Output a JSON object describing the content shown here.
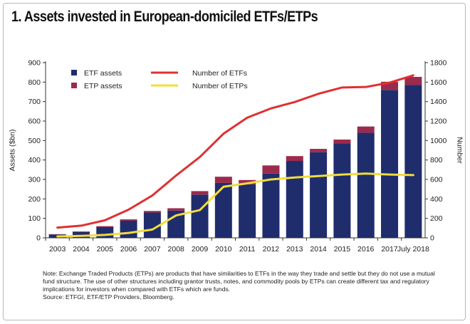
{
  "title": "1. Assets invested in European-domiciled ETFs/ETPs",
  "note": {
    "line1": "Note: Exchange Traded Products (ETPs) are products that have similarities to ETFs in the way they trade and settle but they do not use a mutual",
    "line2": "fund structure. The use of other structures including grantor trusts, notes, and commodity pools by ETPs can create different tax and regulatory",
    "line3": "implications for investors when compared with ETFs which are funds.",
    "source": "Source: ETFGI, ETF/ETP Providers, Bloomberg."
  },
  "chart_data": {
    "type": "bar",
    "ylabel": "Assets ($bn)",
    "y2label": "Number",
    "ylim": [
      0,
      900
    ],
    "y2lim": [
      0,
      1800
    ],
    "yticks": [
      "0",
      "100",
      "200",
      "300",
      "400",
      "500",
      "600",
      "700",
      "800",
      "900"
    ],
    "y2ticks": [
      "0",
      "200",
      "400",
      "600",
      "800",
      "1000",
      "1200",
      "1400",
      "1600",
      "1800"
    ],
    "categories": [
      "2003",
      "2004",
      "2005",
      "2006",
      "2007",
      "2008",
      "2009",
      "2010",
      "2011",
      "2012",
      "2013",
      "2014",
      "2015",
      "2016",
      "2017",
      "July 2018"
    ],
    "series": [
      {
        "name": "ETF assets",
        "kind": "bar",
        "axis": "left",
        "color": "#1f2d6d",
        "values": [
          17,
          30,
          55,
          88,
          130,
          140,
          222,
          282,
          275,
          330,
          395,
          440,
          485,
          540,
          760,
          785
        ]
      },
      {
        "name": "ETP assets",
        "kind": "bar",
        "axis": "left",
        "color": "#9c2a4c",
        "values": [
          2,
          3,
          5,
          7,
          8,
          12,
          18,
          32,
          22,
          42,
          25,
          17,
          20,
          32,
          42,
          42
        ]
      },
      {
        "name": "Number of ETFs",
        "kind": "line",
        "axis": "right",
        "color": "#e03030",
        "values": [
          105,
          125,
          180,
          290,
          435,
          640,
          830,
          1070,
          1235,
          1330,
          1395,
          1480,
          1545,
          1550,
          1595,
          1670
        ]
      },
      {
        "name": "Number of ETPs",
        "kind": "line",
        "axis": "right",
        "color": "#f2dc3a",
        "values": [
          15,
          20,
          30,
          50,
          85,
          230,
          285,
          525,
          560,
          600,
          620,
          635,
          650,
          660,
          650,
          645
        ]
      }
    ],
    "legend": "top-left",
    "grid": false
  }
}
